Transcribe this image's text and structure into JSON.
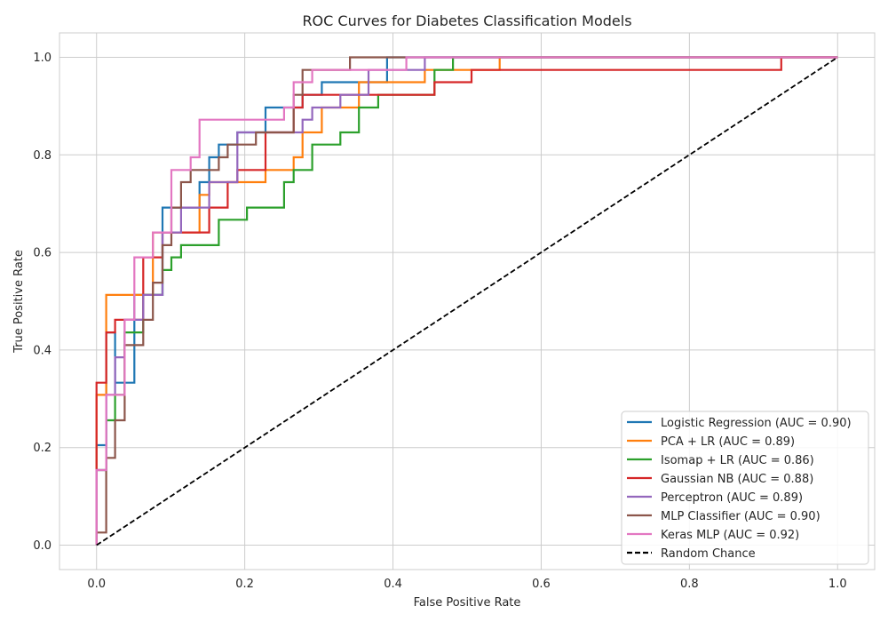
{
  "chart_data": {
    "type": "line",
    "title": "ROC Curves for Diabetes Classification Models",
    "xlabel": "False Positive Rate",
    "ylabel": "True Positive Rate",
    "xlim": [
      -0.05,
      1.05
    ],
    "ylim": [
      -0.05,
      1.05
    ],
    "xticks": [
      0.0,
      0.2,
      0.4,
      0.6,
      0.8,
      1.0
    ],
    "yticks": [
      0.0,
      0.2,
      0.4,
      0.6,
      0.8,
      1.0
    ],
    "xtick_labels": [
      "0.0",
      "0.2",
      "0.4",
      "0.6",
      "0.8",
      "1.0"
    ],
    "ytick_labels": [
      "0.0",
      "0.2",
      "0.4",
      "0.6",
      "0.8",
      "1.0"
    ],
    "grid": true,
    "legend_position": "lower-right",
    "series": [
      {
        "name": "Logistic Regression (AUC = 0.90)",
        "color": "#1f77b4",
        "x": [
          0,
          0,
          0.013,
          0.013,
          0.025,
          0.025,
          0.051,
          0.051,
          0.089,
          0.089,
          0.139,
          0.139,
          0.152,
          0.152,
          0.165,
          0.165,
          0.19,
          0.19,
          0.228,
          0.228,
          0.278,
          0.278,
          0.304,
          0.304,
          0.354,
          0.354,
          0.392,
          0.392,
          1.0
        ],
        "y": [
          0,
          0.205,
          0.205,
          0.436,
          0.436,
          0.333,
          0.333,
          0.513,
          0.513,
          0.692,
          0.692,
          0.744,
          0.744,
          0.795,
          0.795,
          0.821,
          0.821,
          0.846,
          0.846,
          0.897,
          0.897,
          0.923,
          0.923,
          0.949,
          0.949,
          0.949,
          0.949,
          1.0,
          1.0
        ]
      },
      {
        "name": "PCA + LR (AUC = 0.89)",
        "color": "#ff7f0e",
        "x": [
          0,
          0,
          0.013,
          0.013,
          0.076,
          0.076,
          0.139,
          0.139,
          0.152,
          0.152,
          0.228,
          0.228,
          0.266,
          0.266,
          0.278,
          0.278,
          0.304,
          0.304,
          0.354,
          0.354,
          0.443,
          0.443,
          0.544,
          0.544,
          1.0
        ],
        "y": [
          0,
          0.308,
          0.308,
          0.513,
          0.513,
          0.641,
          0.641,
          0.718,
          0.718,
          0.744,
          0.744,
          0.769,
          0.769,
          0.795,
          0.795,
          0.846,
          0.846,
          0.897,
          0.897,
          0.949,
          0.949,
          0.974,
          0.974,
          1.0,
          1.0
        ]
      },
      {
        "name": "Isomap + LR (AUC = 0.86)",
        "color": "#2ca02c",
        "x": [
          0,
          0,
          0.013,
          0.013,
          0.025,
          0.025,
          0.038,
          0.038,
          0.063,
          0.063,
          0.089,
          0.089,
          0.101,
          0.101,
          0.114,
          0.114,
          0.165,
          0.165,
          0.203,
          0.203,
          0.253,
          0.253,
          0.266,
          0.266,
          0.291,
          0.291,
          0.329,
          0.329,
          0.354,
          0.354,
          0.38,
          0.38,
          0.456,
          0.456,
          0.481,
          0.481,
          1.0
        ],
        "y": [
          0,
          0.154,
          0.154,
          0.256,
          0.256,
          0.308,
          0.308,
          0.436,
          0.436,
          0.513,
          0.513,
          0.564,
          0.564,
          0.59,
          0.59,
          0.615,
          0.615,
          0.667,
          0.667,
          0.692,
          0.692,
          0.744,
          0.744,
          0.769,
          0.769,
          0.821,
          0.821,
          0.846,
          0.846,
          0.897,
          0.897,
          0.923,
          0.923,
          0.974,
          0.974,
          1.0,
          1.0
        ]
      },
      {
        "name": "Gaussian NB (AUC = 0.88)",
        "color": "#d62728",
        "x": [
          0,
          0,
          0.013,
          0.013,
          0.025,
          0.025,
          0.063,
          0.063,
          0.089,
          0.089,
          0.152,
          0.152,
          0.177,
          0.177,
          0.19,
          0.19,
          0.228,
          0.228,
          0.266,
          0.266,
          0.278,
          0.278,
          0.456,
          0.456,
          0.506,
          0.506,
          0.924,
          0.924,
          1.0
        ],
        "y": [
          0,
          0.333,
          0.333,
          0.436,
          0.436,
          0.462,
          0.462,
          0.59,
          0.59,
          0.641,
          0.641,
          0.692,
          0.692,
          0.744,
          0.744,
          0.769,
          0.769,
          0.846,
          0.846,
          0.897,
          0.897,
          0.923,
          0.923,
          0.949,
          0.949,
          0.974,
          0.974,
          1.0,
          1.0
        ]
      },
      {
        "name": "Perceptron (AUC = 0.89)",
        "color": "#9467bd",
        "x": [
          0,
          0,
          0.013,
          0.013,
          0.025,
          0.025,
          0.038,
          0.038,
          0.063,
          0.063,
          0.089,
          0.089,
          0.114,
          0.114,
          0.152,
          0.152,
          0.19,
          0.19,
          0.278,
          0.278,
          0.291,
          0.291,
          0.329,
          0.329,
          0.367,
          0.367,
          0.443,
          0.443,
          1.0
        ],
        "y": [
          0,
          0.154,
          0.154,
          0.308,
          0.308,
          0.385,
          0.385,
          0.462,
          0.462,
          0.513,
          0.513,
          0.641,
          0.641,
          0.692,
          0.692,
          0.744,
          0.744,
          0.846,
          0.846,
          0.872,
          0.872,
          0.897,
          0.897,
          0.923,
          0.923,
          0.974,
          0.974,
          1.0,
          1.0
        ]
      },
      {
        "name": "MLP Classifier (AUC = 0.90)",
        "color": "#8c564b",
        "x": [
          0,
          0,
          0.013,
          0.013,
          0.025,
          0.025,
          0.038,
          0.038,
          0.063,
          0.063,
          0.076,
          0.076,
          0.089,
          0.089,
          0.101,
          0.101,
          0.114,
          0.114,
          0.127,
          0.127,
          0.165,
          0.165,
          0.177,
          0.177,
          0.215,
          0.215,
          0.266,
          0.266,
          0.278,
          0.278,
          0.342,
          0.342,
          1.0
        ],
        "y": [
          0,
          0.026,
          0.026,
          0.179,
          0.179,
          0.256,
          0.256,
          0.41,
          0.41,
          0.462,
          0.462,
          0.538,
          0.538,
          0.615,
          0.615,
          0.692,
          0.692,
          0.744,
          0.744,
          0.769,
          0.769,
          0.795,
          0.795,
          0.821,
          0.821,
          0.846,
          0.846,
          0.923,
          0.923,
          0.974,
          0.974,
          1.0,
          1.0
        ]
      },
      {
        "name": "Keras MLP (AUC = 0.92)",
        "color": "#e377c2",
        "x": [
          0,
          0,
          0.013,
          0.013,
          0.038,
          0.038,
          0.051,
          0.051,
          0.076,
          0.076,
          0.101,
          0.101,
          0.127,
          0.127,
          0.139,
          0.139,
          0.253,
          0.253,
          0.266,
          0.266,
          0.291,
          0.291,
          0.418,
          0.418,
          1.0
        ],
        "y": [
          0,
          0.154,
          0.154,
          0.308,
          0.308,
          0.462,
          0.462,
          0.59,
          0.59,
          0.641,
          0.641,
          0.769,
          0.769,
          0.795,
          0.795,
          0.872,
          0.872,
          0.897,
          0.897,
          0.949,
          0.949,
          0.974,
          0.974,
          1.0,
          1.0
        ]
      }
    ],
    "reference_line": {
      "name": "Random Chance",
      "color": "#000000",
      "style": "dashed",
      "x": [
        0,
        1
      ],
      "y": [
        0,
        1
      ]
    }
  }
}
